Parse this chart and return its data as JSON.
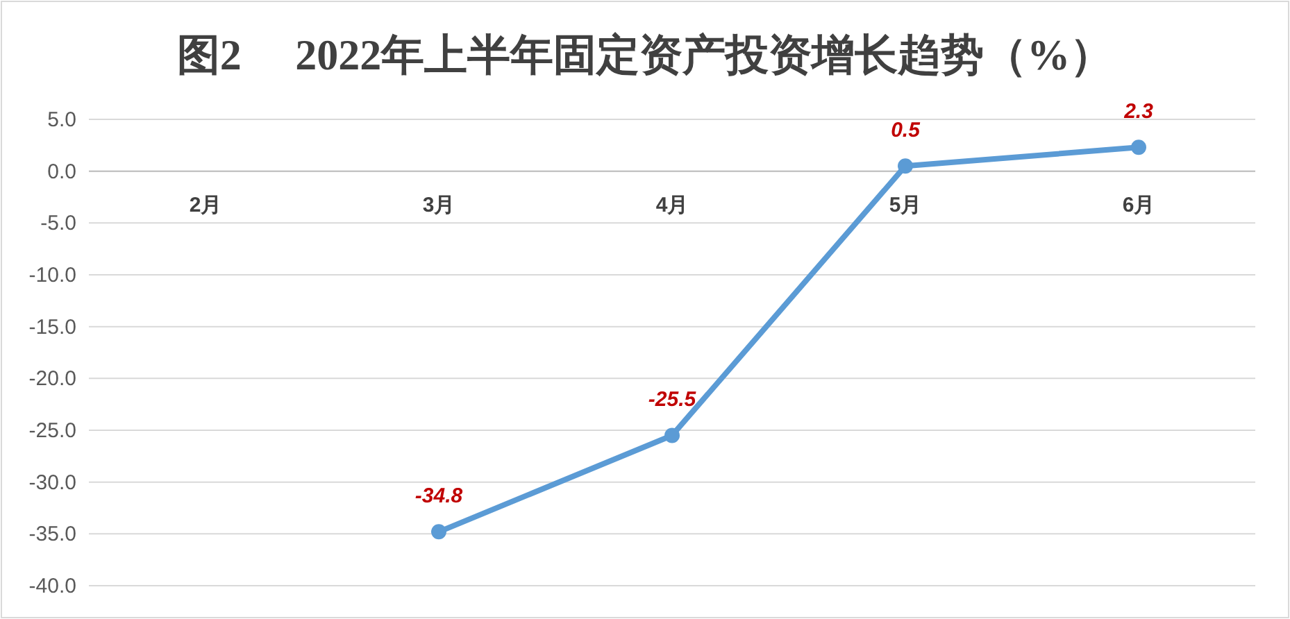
{
  "chart_data": {
    "type": "line",
    "title": "图2　 2022年上半年固定资产投资增长趋势（%）",
    "categories": [
      "2月",
      "3月",
      "4月",
      "5月",
      "6月"
    ],
    "series": [
      {
        "color": "#5b9bd5",
        "values": [
          null,
          -34.8,
          -25.5,
          0.5,
          2.3
        ]
      }
    ],
    "ylim": [
      -40,
      5
    ],
    "yticks": [
      {
        "value": -40,
        "label": "-40.0"
      },
      {
        "value": -35,
        "label": "-35.0"
      },
      {
        "value": -30,
        "label": "-30.0"
      },
      {
        "value": -25,
        "label": "-25.0"
      },
      {
        "value": -20,
        "label": "-20.0"
      },
      {
        "value": -15,
        "label": "-15.0"
      },
      {
        "value": -10,
        "label": "-10.0"
      },
      {
        "value": -5,
        "label": "-5.0"
      },
      {
        "value": 0,
        "label": "0.0"
      },
      {
        "value": 5,
        "label": "5.0"
      }
    ],
    "grid": "y",
    "marker": "circle",
    "line_style": "solid",
    "data_labels": true
  }
}
